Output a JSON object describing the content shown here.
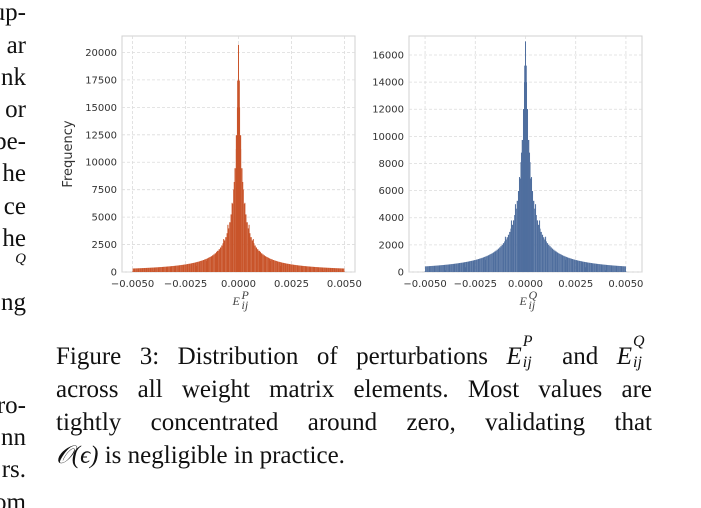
{
  "left_fragments": [
    "up-",
    "ar",
    "nk",
    "or",
    "pe-",
    "he",
    "ce",
    "he",
    "Q",
    "ng",
    "ro-",
    "nn",
    "rs.",
    "om"
  ],
  "figure": {
    "panels": [
      {
        "ylabel": "Frequency",
        "xlabel": "E",
        "xlabel_sub": "ij",
        "xlabel_sup": "P",
        "yticks": [
          "0",
          "2500",
          "5000",
          "7500",
          "10000",
          "12500",
          "15000",
          "17500",
          "20000"
        ],
        "xticks": [
          "−0.0050",
          "−0.0025",
          "0.0000",
          "0.0025",
          "0.0050"
        ]
      },
      {
        "ylabel": "",
        "xlabel": "E",
        "xlabel_sub": "ij",
        "xlabel_sup": "Q",
        "yticks": [
          "0",
          "2000",
          "4000",
          "6000",
          "8000",
          "10000",
          "12000",
          "14000",
          "16000"
        ],
        "xticks": [
          "−0.0050",
          "−0.0025",
          "0.0000",
          "0.0025",
          "0.0050"
        ]
      }
    ]
  },
  "chart_data": [
    {
      "type": "bar",
      "title": "",
      "xlabel": "E_ij^P",
      "ylabel": "Frequency",
      "color": "#c9542a",
      "xlim": [
        -0.0055,
        0.0055
      ],
      "ylim": [
        0,
        21500
      ],
      "peak": 20700,
      "x": [
        -0.005,
        -0.004,
        -0.003,
        -0.002,
        -0.0015,
        -0.001,
        -0.0007,
        -0.0005,
        -0.0003,
        -0.0002,
        -0.0001,
        -5e-05,
        0.0,
        5e-05,
        0.0001,
        0.0002,
        0.0003,
        0.0005,
        0.0007,
        0.001,
        0.0015,
        0.002,
        0.003,
        0.004,
        0.005
      ],
      "values": [
        30,
        70,
        200,
        550,
        1000,
        1900,
        3000,
        4300,
        6300,
        8200,
        11200,
        15000,
        20700,
        15000,
        11200,
        8200,
        6300,
        4300,
        3000,
        1900,
        1000,
        550,
        200,
        70,
        30
      ]
    },
    {
      "type": "bar",
      "title": "",
      "xlabel": "E_ij^Q",
      "ylabel": "",
      "color": "#4f6e9e",
      "xlim": [
        -0.0058,
        0.0058
      ],
      "ylim": [
        0,
        17400
      ],
      "peak": 17000,
      "x": [
        -0.005,
        -0.004,
        -0.003,
        -0.002,
        -0.0015,
        -0.001,
        -0.0007,
        -0.0005,
        -0.0003,
        -0.0002,
        -0.0001,
        -5e-05,
        0.0,
        5e-05,
        0.0001,
        0.0002,
        0.0003,
        0.0005,
        0.0007,
        0.001,
        0.0015,
        0.002,
        0.003,
        0.004,
        0.005
      ],
      "values": [
        40,
        120,
        350,
        900,
        1500,
        2600,
        3800,
        5000,
        7000,
        8800,
        11300,
        14000,
        17000,
        14000,
        11300,
        8800,
        7000,
        5000,
        3800,
        2600,
        1500,
        900,
        350,
        120,
        40
      ]
    }
  ],
  "caption": {
    "line1_pre": "Figure 3: Distribution of perturbations ",
    "line1_and": " and ",
    "line2": "across all weight matrix elements. Most values are",
    "line3": "tightly concentrated around zero, validating that",
    "line4_post": " is negligible in practice.",
    "math_E": "E",
    "math_ij": "ij",
    "math_P": "P",
    "math_Q": "Q",
    "math_O": "𝒪(ϵ)"
  }
}
